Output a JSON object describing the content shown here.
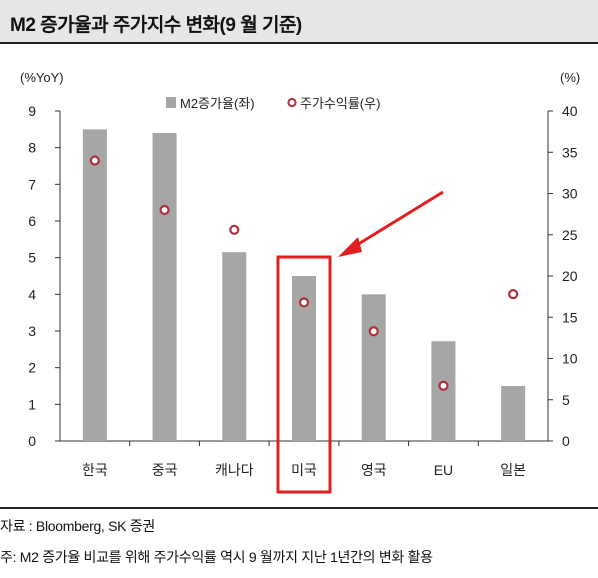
{
  "header": {
    "title": "M2 증가율과 주가지수 변화(9 월 기준)"
  },
  "chart_data": {
    "type": "bar",
    "categories": [
      "한국",
      "중국",
      "캐나다",
      "미국",
      "영국",
      "EU",
      "일본"
    ],
    "series": [
      {
        "name": "M2증가율(좌)",
        "type": "bar",
        "axis": "left",
        "values": [
          8.5,
          8.4,
          5.15,
          4.5,
          4.0,
          2.72,
          1.5
        ]
      },
      {
        "name": "주가수익률(우)",
        "type": "scatter",
        "axis": "right",
        "values": [
          34,
          28,
          25.6,
          16.8,
          13.3,
          6.7,
          17.8
        ]
      }
    ],
    "left_axis": {
      "unit": "(%YoY)",
      "ylim": [
        0,
        9
      ],
      "ticks": [
        "0",
        "1",
        "2",
        "3",
        "4",
        "5",
        "6",
        "7",
        "8",
        "9"
      ]
    },
    "right_axis": {
      "unit": "(%)",
      "ylim": [
        0,
        40
      ],
      "ticks": [
        "0",
        "5",
        "10",
        "15",
        "20",
        "25",
        "30",
        "35",
        "40"
      ]
    },
    "highlight_category": "미국",
    "legend_position": "top-center",
    "grid": false,
    "colors": {
      "bar": "#a6a6a6",
      "marker_stroke": "#b0303a",
      "highlight": "#e02020"
    }
  },
  "footer": {
    "source": "자료 : Bloomberg, SK 증권",
    "note": "주: M2 증가율 비교를 위해 주가수익률 역시 9 월까지 지난 1년간의 변화 활용"
  }
}
